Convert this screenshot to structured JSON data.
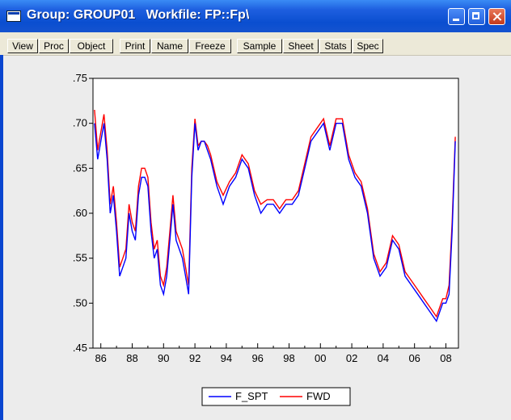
{
  "window": {
    "title": "Group: GROUP01   Workfile: FP::Fp\\",
    "title_icon": "group-window-icon",
    "controls": [
      "minimize-icon",
      "maximize-icon",
      "close-icon"
    ]
  },
  "toolbar": {
    "buttons": [
      "View",
      "Proc",
      "Object",
      "Print",
      "Name",
      "Freeze",
      "Sample",
      "Sheet",
      "Stats",
      "Spec"
    ]
  },
  "chart_data": {
    "type": "line",
    "title": "",
    "xlabel": "",
    "ylabel": "",
    "ylim": [
      0.45,
      0.75
    ],
    "yticks": [
      ".45",
      ".50",
      ".55",
      ".60",
      ".65",
      ".70",
      ".75"
    ],
    "xlim": [
      1985.5,
      2008.8
    ],
    "xticks": [
      "86",
      "88",
      "90",
      "92",
      "94",
      "96",
      "98",
      "00",
      "02",
      "04",
      "06",
      "08"
    ],
    "grid": false,
    "legend": "bottom-center",
    "series": [
      {
        "name": "F_SPT",
        "color": "#0000ff",
        "x": [
          1985.6,
          1985.8,
          1986.0,
          1986.2,
          1986.4,
          1986.6,
          1986.8,
          1987.0,
          1987.2,
          1987.4,
          1987.6,
          1987.8,
          1988.0,
          1988.2,
          1988.4,
          1988.6,
          1988.8,
          1989.0,
          1989.2,
          1989.4,
          1989.6,
          1989.8,
          1990.0,
          1990.2,
          1990.4,
          1990.6,
          1990.8,
          1991.0,
          1991.2,
          1991.4,
          1991.6,
          1991.8,
          1992.0,
          1992.2,
          1992.4,
          1992.6,
          1992.8,
          1993.0,
          1993.4,
          1993.8,
          1994.2,
          1994.6,
          1995.0,
          1995.4,
          1995.8,
          1996.2,
          1996.6,
          1997.0,
          1997.4,
          1997.8,
          1998.2,
          1998.6,
          1999.0,
          1999.4,
          1999.8,
          2000.2,
          2000.6,
          2001.0,
          2001.4,
          2001.8,
          2002.2,
          2002.6,
          2003.0,
          2003.4,
          2003.8,
          2004.2,
          2004.6,
          2005.0,
          2005.4,
          2005.8,
          2006.2,
          2006.6,
          2007.0,
          2007.4,
          2007.8,
          2008.0,
          2008.2,
          2008.4,
          2008.6
        ],
        "values": [
          0.7,
          0.66,
          0.68,
          0.7,
          0.66,
          0.6,
          0.62,
          0.58,
          0.53,
          0.54,
          0.55,
          0.6,
          0.58,
          0.57,
          0.62,
          0.64,
          0.64,
          0.63,
          0.58,
          0.55,
          0.56,
          0.52,
          0.51,
          0.53,
          0.57,
          0.61,
          0.57,
          0.56,
          0.55,
          0.53,
          0.51,
          0.64,
          0.7,
          0.67,
          0.68,
          0.68,
          0.67,
          0.66,
          0.63,
          0.61,
          0.63,
          0.64,
          0.66,
          0.65,
          0.62,
          0.6,
          0.61,
          0.61,
          0.6,
          0.61,
          0.61,
          0.62,
          0.65,
          0.68,
          0.69,
          0.7,
          0.67,
          0.7,
          0.7,
          0.66,
          0.64,
          0.63,
          0.6,
          0.55,
          0.53,
          0.54,
          0.57,
          0.56,
          0.53,
          0.52,
          0.51,
          0.5,
          0.49,
          0.48,
          0.5,
          0.5,
          0.51,
          0.58,
          0.68
        ]
      },
      {
        "name": "FWD",
        "color": "#ff0000",
        "x": [
          1985.6,
          1985.8,
          1986.0,
          1986.2,
          1986.4,
          1986.6,
          1986.8,
          1987.0,
          1987.2,
          1987.4,
          1987.6,
          1987.8,
          1988.0,
          1988.2,
          1988.4,
          1988.6,
          1988.8,
          1989.0,
          1989.2,
          1989.4,
          1989.6,
          1989.8,
          1990.0,
          1990.2,
          1990.4,
          1990.6,
          1990.8,
          1991.0,
          1991.2,
          1991.4,
          1991.6,
          1991.8,
          1992.0,
          1992.2,
          1992.4,
          1992.6,
          1992.8,
          1993.0,
          1993.4,
          1993.8,
          1994.2,
          1994.6,
          1995.0,
          1995.4,
          1995.8,
          1996.2,
          1996.6,
          1997.0,
          1997.4,
          1997.8,
          1998.2,
          1998.6,
          1999.0,
          1999.4,
          1999.8,
          2000.2,
          2000.6,
          2001.0,
          2001.4,
          2001.8,
          2002.2,
          2002.6,
          2003.0,
          2003.4,
          2003.8,
          2004.2,
          2004.6,
          2005.0,
          2005.4,
          2005.8,
          2006.2,
          2006.6,
          2007.0,
          2007.4,
          2007.8,
          2008.0,
          2008.2,
          2008.4,
          2008.6
        ],
        "values": [
          0.715,
          0.67,
          0.69,
          0.71,
          0.67,
          0.61,
          0.63,
          0.59,
          0.54,
          0.55,
          0.56,
          0.61,
          0.59,
          0.58,
          0.63,
          0.65,
          0.65,
          0.64,
          0.59,
          0.56,
          0.57,
          0.53,
          0.52,
          0.54,
          0.58,
          0.62,
          0.58,
          0.57,
          0.56,
          0.54,
          0.52,
          0.65,
          0.705,
          0.675,
          0.68,
          0.68,
          0.675,
          0.665,
          0.635,
          0.62,
          0.635,
          0.645,
          0.665,
          0.655,
          0.625,
          0.61,
          0.615,
          0.615,
          0.605,
          0.615,
          0.615,
          0.625,
          0.655,
          0.685,
          0.695,
          0.705,
          0.675,
          0.705,
          0.705,
          0.665,
          0.645,
          0.635,
          0.605,
          0.555,
          0.535,
          0.545,
          0.575,
          0.565,
          0.535,
          0.525,
          0.515,
          0.505,
          0.495,
          0.485,
          0.505,
          0.505,
          0.52,
          0.59,
          0.685
        ]
      }
    ]
  }
}
